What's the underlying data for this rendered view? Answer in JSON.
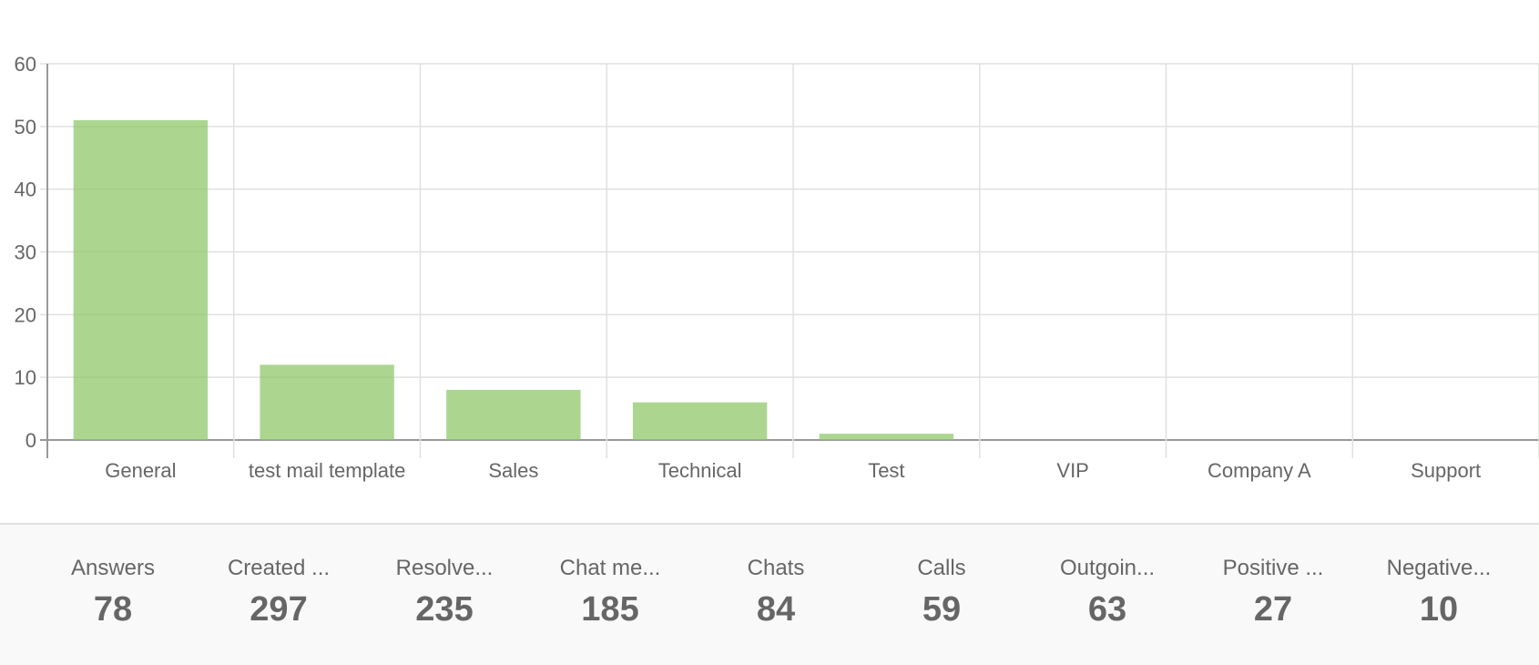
{
  "chart_data": {
    "type": "bar",
    "title": "",
    "xlabel": "",
    "ylabel": "",
    "categories": [
      "General",
      "test mail template",
      "Sales",
      "Technical",
      "Test",
      "VIP",
      "Company A",
      "Support"
    ],
    "values": [
      51,
      12,
      8,
      6,
      1,
      0,
      0,
      0
    ],
    "ylim": [
      0,
      60
    ],
    "yticks": [
      0,
      10,
      20,
      30,
      40,
      50,
      60
    ],
    "grid": true,
    "bar_color": "#8cc665"
  },
  "stats": [
    {
      "label": "Answers",
      "value": "78"
    },
    {
      "label": "Created ...",
      "value": "297"
    },
    {
      "label": "Resolve...",
      "value": "235"
    },
    {
      "label": "Chat me...",
      "value": "185"
    },
    {
      "label": "Chats",
      "value": "84"
    },
    {
      "label": "Calls",
      "value": "59"
    },
    {
      "label": "Outgoin...",
      "value": "63"
    },
    {
      "label": "Positive ...",
      "value": "27"
    },
    {
      "label": "Negative...",
      "value": "10"
    }
  ]
}
